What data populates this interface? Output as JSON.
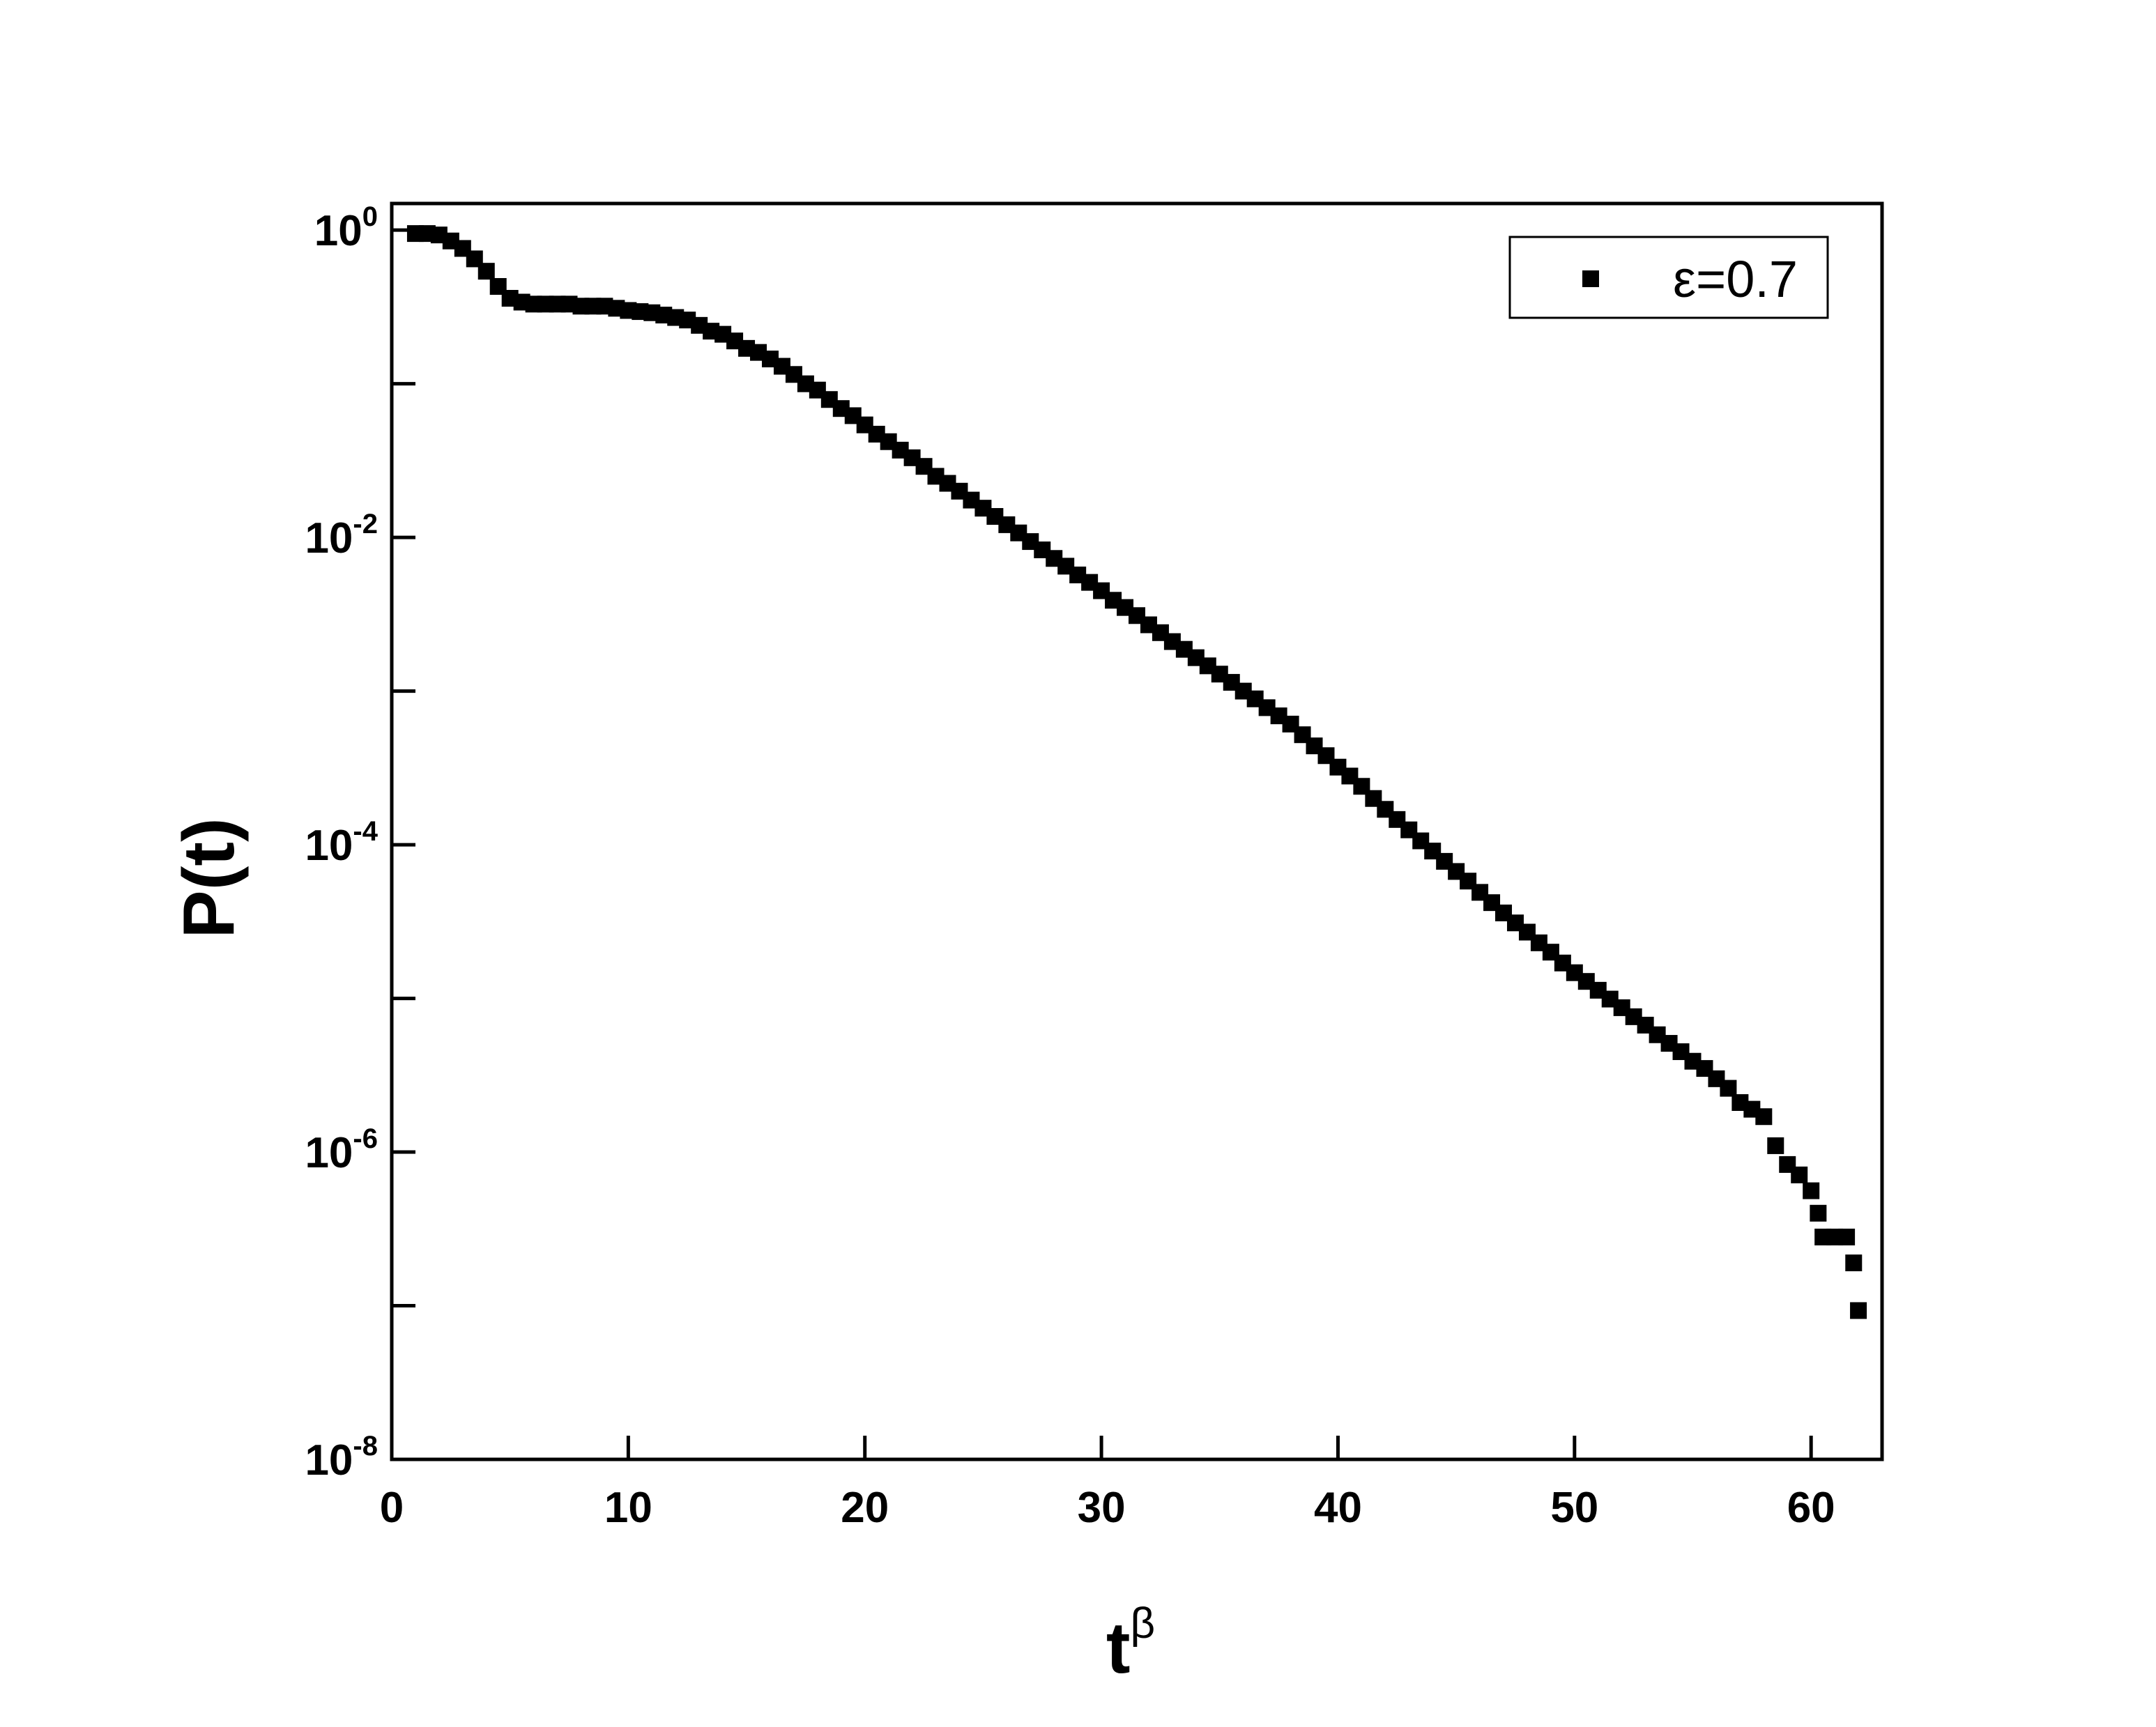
{
  "chart_data": {
    "type": "scatter",
    "x_label": "t",
    "x_label_sup": "β",
    "y_label": "P(t)",
    "y_scale": "log",
    "legend": "upper right",
    "xlim": [
      0,
      63
    ],
    "xticks": [
      0,
      10,
      20,
      30,
      40,
      50,
      60
    ],
    "ylim": [
      1e-08,
      1.49
    ],
    "yticks": [
      {
        "value": 1,
        "label": "10",
        "sup": "0"
      },
      {
        "value": 0.01,
        "label": "10",
        "sup": "-2"
      },
      {
        "value": 0.0001,
        "label": "10",
        "sup": "-4"
      },
      {
        "value": 1e-06,
        "label": "10",
        "sup": "-6"
      },
      {
        "value": 1e-08,
        "label": "10",
        "sup": "-8"
      }
    ],
    "yminorticks": [
      0.1,
      0.001,
      1e-05,
      1e-07
    ],
    "series": [
      {
        "name": "ε=0.7",
        "color": "#000000",
        "x": [
          1,
          1.5,
          2,
          2.5,
          3,
          3.5,
          4,
          4.5,
          5,
          5.5,
          6,
          6.5,
          7,
          7.5,
          8,
          8.5,
          9,
          9.5,
          10,
          10.5,
          11,
          11.5,
          12,
          12.5,
          13,
          13.5,
          14,
          14.5,
          15,
          15.5,
          16,
          16.5,
          17,
          17.5,
          18,
          18.5,
          19,
          19.5,
          20,
          20.5,
          21,
          21.5,
          22,
          22.5,
          23,
          23.5,
          24,
          24.5,
          25,
          25.5,
          26,
          26.5,
          27,
          27.5,
          28,
          28.5,
          29,
          29.5,
          30,
          30.5,
          31,
          31.5,
          32,
          32.5,
          33,
          33.5,
          34,
          34.5,
          35,
          35.5,
          36,
          36.5,
          37,
          37.5,
          38,
          38.5,
          39,
          39.5,
          40,
          40.5,
          41,
          41.5,
          42,
          42.5,
          43,
          43.5,
          44,
          44.5,
          45,
          45.5,
          46,
          46.5,
          47,
          47.5,
          48,
          48.5,
          49,
          49.5,
          50,
          50.5,
          51,
          51.5,
          52,
          52.5,
          53,
          53.5,
          54,
          54.5,
          55,
          55.5,
          56,
          56.5,
          57,
          57.5,
          58,
          58.5,
          59,
          59.5,
          60,
          60.3,
          60.5,
          61,
          61.5,
          61.8,
          62
        ],
        "values": [
          0.95,
          0.95,
          0.93,
          0.85,
          0.76,
          0.65,
          0.54,
          0.43,
          0.36,
          0.34,
          0.33,
          0.33,
          0.33,
          0.33,
          0.32,
          0.32,
          0.32,
          0.31,
          0.3,
          0.295,
          0.29,
          0.28,
          0.27,
          0.26,
          0.24,
          0.22,
          0.21,
          0.19,
          0.17,
          0.16,
          0.145,
          0.13,
          0.115,
          0.1,
          0.091,
          0.079,
          0.069,
          0.062,
          0.054,
          0.047,
          0.042,
          0.037,
          0.033,
          0.029,
          0.025,
          0.0225,
          0.02,
          0.0175,
          0.0155,
          0.0137,
          0.0121,
          0.0107,
          0.0094,
          0.0083,
          0.0073,
          0.0065,
          0.0057,
          0.0051,
          0.0045,
          0.0039,
          0.0035,
          0.0031,
          0.0027,
          0.0024,
          0.0021,
          0.00187,
          0.00165,
          0.00146,
          0.00129,
          0.00114,
          0.001,
          0.00089,
          0.00078,
          0.00069,
          0.00061,
          0.00052,
          0.00044,
          0.00038,
          0.00032,
          0.00028,
          0.00024,
          0.0002,
          0.00017,
          0.000146,
          0.000125,
          0.000106,
          9.1e-05,
          7.8e-05,
          6.7e-05,
          5.8e-05,
          4.9e-05,
          4.2e-05,
          3.6e-05,
          3.1e-05,
          2.7e-05,
          2.3e-05,
          2e-05,
          1.7e-05,
          1.47e-05,
          1.29e-05,
          1.13e-05,
          9.9e-06,
          8.7e-06,
          7.6e-06,
          6.7e-06,
          5.8e-06,
          5.1e-06,
          4.5e-06,
          3.9e-06,
          3.5e-06,
          3e-06,
          2.6e-06,
          2.1e-06,
          1.9e-06,
          1.7e-06,
          1.1e-06,
          8.3e-07,
          7.1e-07,
          5.6e-07,
          4e-07,
          2.8e-07,
          2.8e-07,
          2.8e-07,
          1.9e-07,
          9.3e-08
        ]
      }
    ]
  }
}
